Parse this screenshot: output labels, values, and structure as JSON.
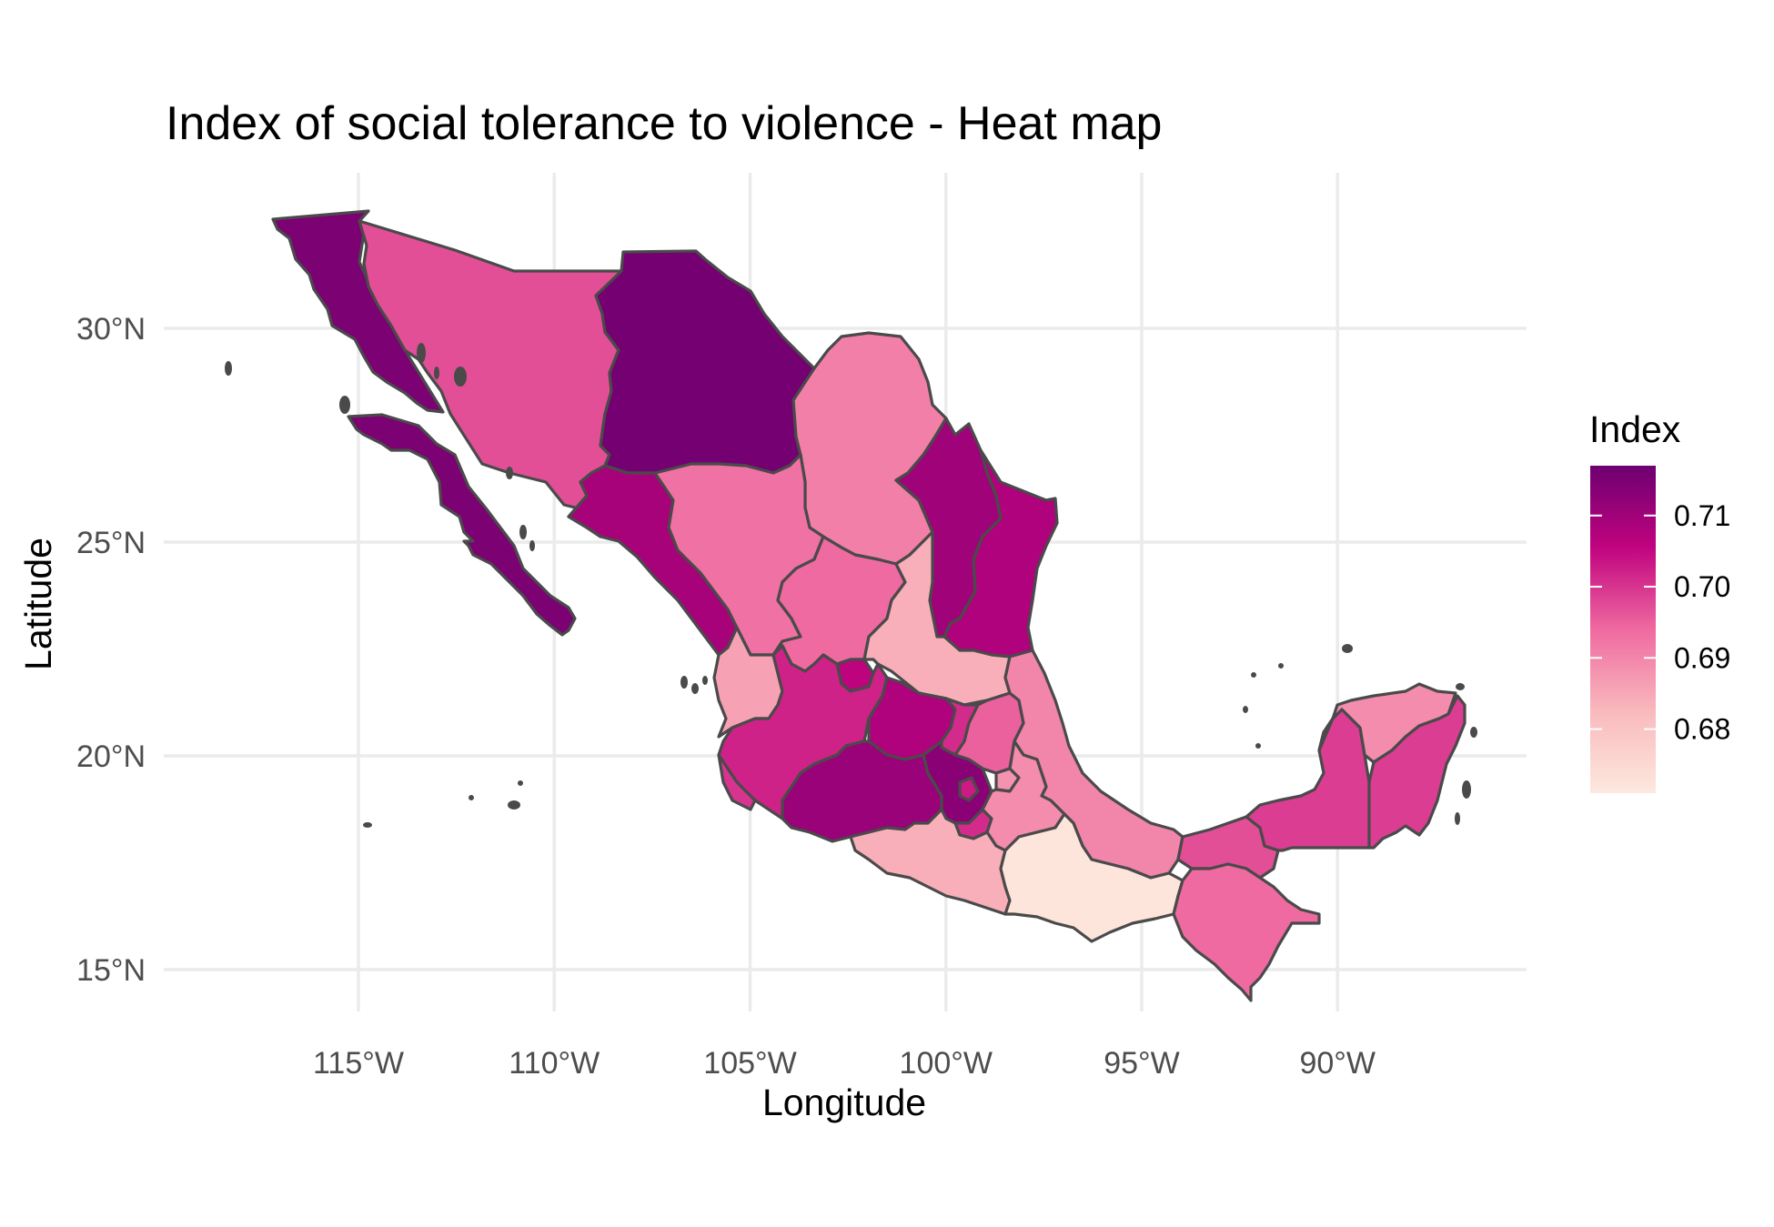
{
  "title": "Index of social tolerance to violence - Heat map",
  "x_axis": {
    "label": "Longitude",
    "ticks": [
      {
        "value": -115,
        "label": "115°W"
      },
      {
        "value": -110,
        "label": "110°W"
      },
      {
        "value": -105,
        "label": "105°W"
      },
      {
        "value": -100,
        "label": "100°W"
      },
      {
        "value": -95,
        "label": "95°W"
      },
      {
        "value": -90,
        "label": "90°W"
      }
    ]
  },
  "y_axis": {
    "label": "Latitude",
    "ticks": [
      {
        "value": 30,
        "label": "30°N"
      },
      {
        "value": 25,
        "label": "25°N"
      },
      {
        "value": 20,
        "label": "20°N"
      },
      {
        "value": 15,
        "label": "15°N"
      }
    ]
  },
  "legend": {
    "title": "Index",
    "range": [
      0.671,
      0.717
    ],
    "ticks": [
      {
        "value": 0.71,
        "label": "0.71"
      },
      {
        "value": 0.7,
        "label": "0.70"
      },
      {
        "value": 0.69,
        "label": "0.69"
      },
      {
        "value": 0.68,
        "label": "0.68"
      }
    ],
    "colors": {
      "low": "#fde9df",
      "mid_low": "#f79aa9",
      "mid": "#e8428d",
      "mid_high": "#c1037f",
      "high": "#6d0070"
    }
  },
  "colors": {
    "border": "#4a4a4a",
    "grid": "#ebebeb",
    "background": "#ffffff"
  },
  "chart_data": {
    "type": "heatmap",
    "title": "Index of social tolerance to violence - Heat map",
    "xlabel": "Longitude",
    "ylabel": "Latitude",
    "xlim": [
      -119.8,
      -85.4
    ],
    "ylim": [
      13.8,
      33.9
    ],
    "grid": true,
    "legend_position": "right",
    "series": [
      {
        "name": "Index",
        "regions": [
          {
            "id": "baja-california",
            "value": 0.715
          },
          {
            "id": "baja-california-sur",
            "value": 0.715
          },
          {
            "id": "sonora",
            "value": 0.697
          },
          {
            "id": "chihuahua",
            "value": 0.716
          },
          {
            "id": "coahuila",
            "value": 0.691
          },
          {
            "id": "nuevo-leon",
            "value": 0.71
          },
          {
            "id": "tamaulipas",
            "value": 0.708
          },
          {
            "id": "sinaloa",
            "value": 0.709
          },
          {
            "id": "durango",
            "value": 0.693
          },
          {
            "id": "zacatecas",
            "value": 0.694
          },
          {
            "id": "san-luis-potosi",
            "value": 0.684
          },
          {
            "id": "nayarit",
            "value": 0.686
          },
          {
            "id": "aguascalientes",
            "value": 0.706
          },
          {
            "id": "jalisco",
            "value": 0.702
          },
          {
            "id": "guanajuato",
            "value": 0.708
          },
          {
            "id": "queretaro",
            "value": 0.701
          },
          {
            "id": "hidalgo",
            "value": 0.695
          },
          {
            "id": "veracruz",
            "value": 0.69
          },
          {
            "id": "colima",
            "value": 0.7
          },
          {
            "id": "michoacan",
            "value": 0.711
          },
          {
            "id": "mexico-state",
            "value": 0.713
          },
          {
            "id": "mexico-city",
            "value": 0.703
          },
          {
            "id": "morelos",
            "value": 0.701
          },
          {
            "id": "tlaxcala",
            "value": 0.688
          },
          {
            "id": "puebla",
            "value": 0.689
          },
          {
            "id": "guerrero",
            "value": 0.684
          },
          {
            "id": "oaxaca",
            "value": 0.672
          },
          {
            "id": "tabasco",
            "value": 0.697
          },
          {
            "id": "chiapas",
            "value": 0.694
          },
          {
            "id": "campeche",
            "value": 0.699
          },
          {
            "id": "yucatan",
            "value": 0.689
          },
          {
            "id": "quintana-roo",
            "value": 0.699
          }
        ]
      }
    ]
  }
}
